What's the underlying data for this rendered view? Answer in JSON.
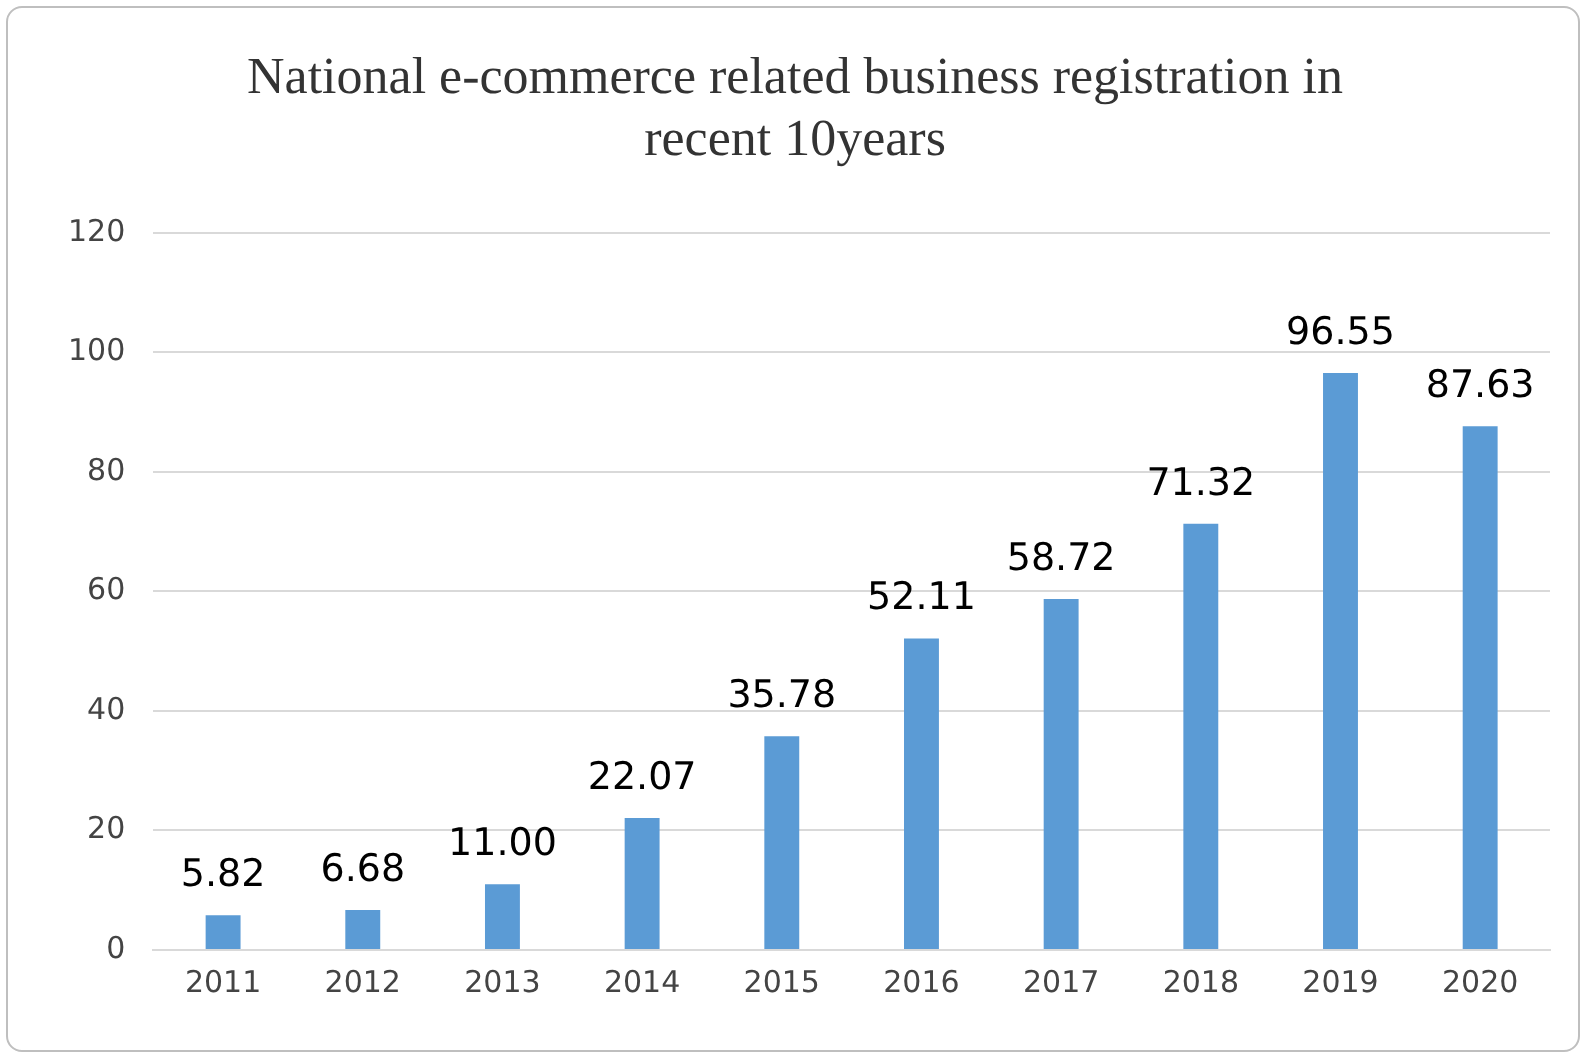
{
  "chart_data": {
    "type": "bar",
    "title": "National e-commerce related business registration in recent 10years",
    "categories": [
      "2011",
      "2012",
      "2013",
      "2014",
      "2015",
      "2016",
      "2017",
      "2018",
      "2019",
      "2020"
    ],
    "values": [
      5.82,
      6.68,
      11.0,
      22.07,
      35.78,
      52.11,
      58.72,
      71.32,
      96.55,
      87.63
    ],
    "value_labels": [
      "5.82",
      "6.68",
      "11.00",
      "22.07",
      "35.78",
      "52.11",
      "58.72",
      "71.32",
      "96.55",
      "87.63"
    ],
    "color": "#5b9bd5",
    "ylim": [
      0,
      120
    ],
    "yticks": [
      0,
      20,
      40,
      60,
      80,
      100,
      120
    ],
    "grid": "y",
    "legend": false
  }
}
